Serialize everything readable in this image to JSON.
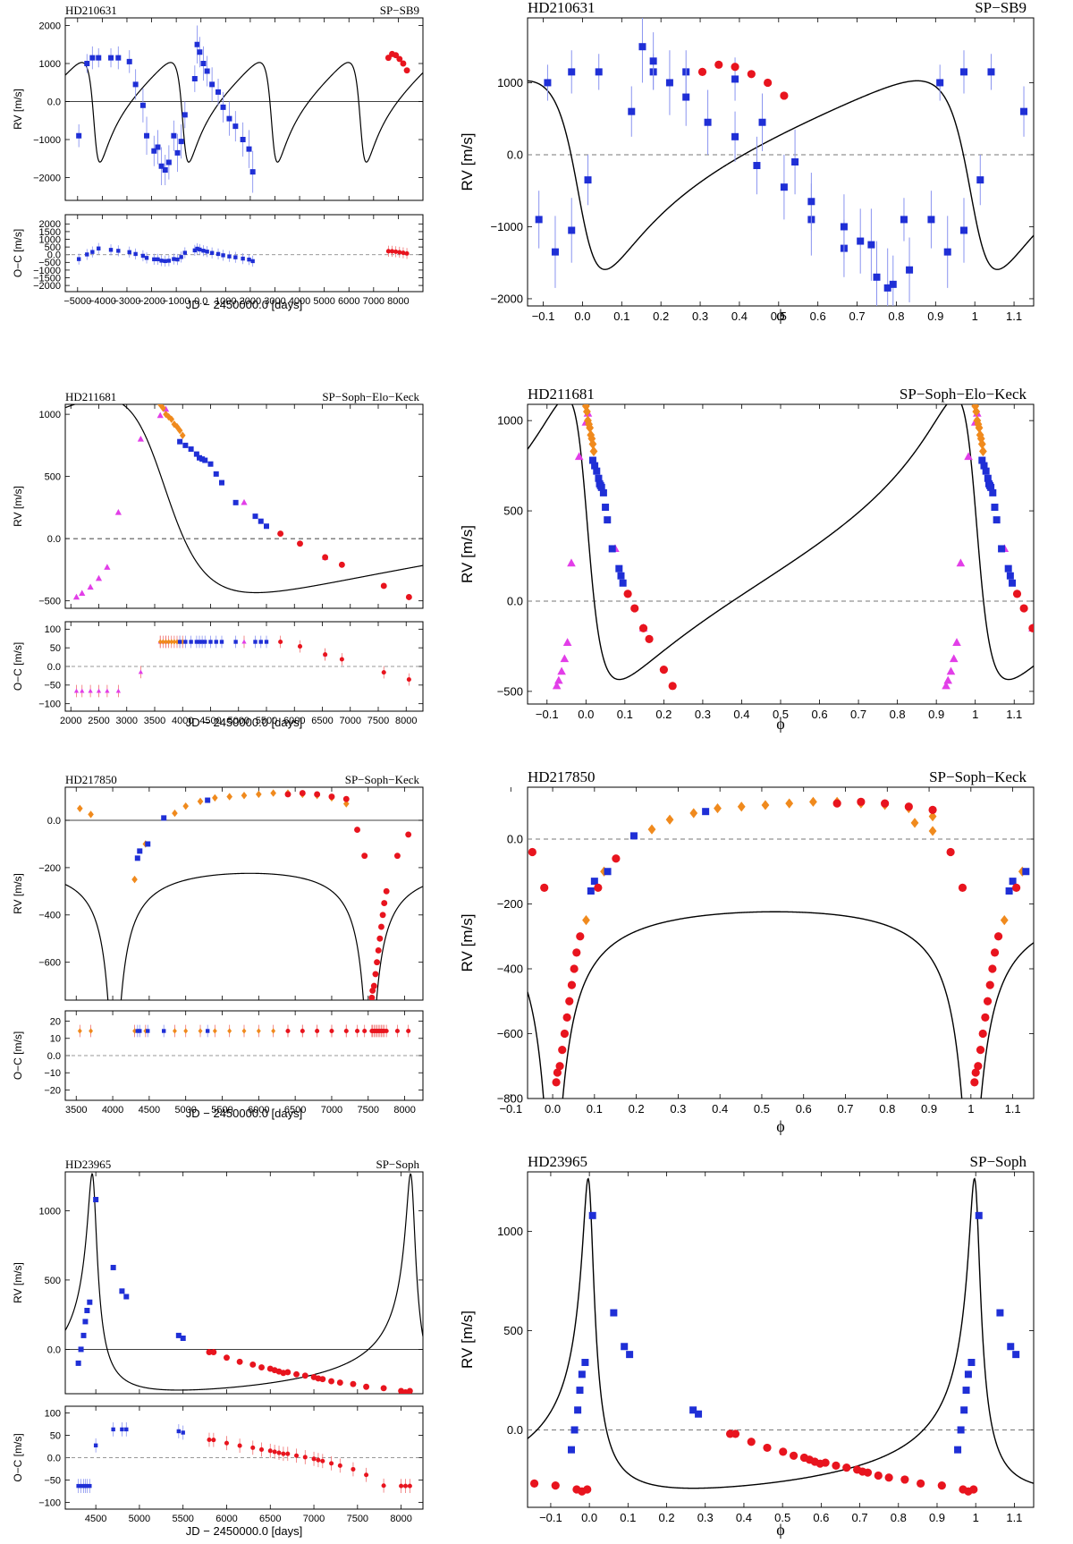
{
  "figure": {
    "colors": {
      "blue": "#1f2fd6",
      "red": "#e8141e",
      "orange": "#f08a1d",
      "magenta": "#e23ee8",
      "curve": "#000000",
      "errorbar_blue": "#8a94f0",
      "errorbar_red": "#f07070"
    }
  },
  "chart_data": [
    {
      "id": "hd210631",
      "type": "line",
      "star": "HD210631",
      "instruments": "SP−SB9",
      "xlabel": "JD − 2450000.0 [days]",
      "ylabel": "RV [m/s]",
      "oc_label": "O−C [m/s]",
      "phase_label": "ϕ",
      "time": {
        "xlim": [
          -5500,
          9000
        ],
        "xticks": [
          -5000,
          -4000,
          -3000,
          -2000,
          -1000,
          0,
          1000,
          2000,
          3000,
          4000,
          5000,
          6000,
          7000,
          8000
        ],
        "ylim": [
          -2600,
          2200
        ],
        "yticks": [
          -2000,
          -1000,
          0,
          1000,
          2000
        ],
        "oc_ylim": [
          -2400,
          2600
        ],
        "oc_yticks": [
          -2000,
          -1500,
          -1000,
          -500,
          0,
          500,
          1000,
          1500,
          2000
        ],
        "zero_style": "solid",
        "period": 3600,
        "tp": -4300,
        "e": 0.52,
        "w": 2.0,
        "K": 1310,
        "v0": 0,
        "curve_range": [
          -5500,
          9000
        ],
        "series": [
          {
            "name": "SP",
            "color": "blue",
            "marker": "square",
            "x": [
              -4950,
              -4620,
              -4400,
              -4150,
              -3650,
              -3350,
              -2900,
              -2650,
              -2350,
              -2200,
              -1900,
              -1750,
              -1600,
              -1450,
              -1300,
              -1100,
              -950,
              -800,
              -650,
              -250,
              -150,
              -50,
              100,
              250,
              450,
              700,
              900,
              1150,
              1400,
              1700,
              1950,
              2100
            ],
            "y": [
              -900,
              1000,
              1150,
              1150,
              1150,
              1150,
              1050,
              450,
              -100,
              -900,
              -1300,
              -1200,
              -1700,
              -1800,
              -1600,
              -900,
              -1350,
              -1050,
              -350,
              600,
              1500,
              1300,
              1000,
              800,
              450,
              250,
              -150,
              -450,
              -650,
              -1000,
              -1250,
              -1850
            ],
            "err": [
              300,
              250,
              300,
              250,
              250,
              300,
              300,
              400,
              450,
              500,
              400,
              450,
              500,
              400,
              450,
              400,
              500,
              450,
              350,
              350,
              500,
              400,
              450,
              400,
              450,
              350,
              400,
              450,
              400,
              450,
              500,
              550
            ]
          },
          {
            "name": "SB9",
            "color": "red",
            "marker": "circle",
            "x": [
              7600,
              7750,
              7900,
              8050,
              8200,
              8350
            ],
            "y": [
              1150,
              1250,
              1220,
              1120,
              1000,
              820
            ],
            "err": [
              30,
              30,
              30,
              30,
              30,
              30
            ]
          }
        ]
      },
      "phase": {
        "xlim": [
          -0.14,
          1.15
        ],
        "xticks": [
          -0.1,
          0.0,
          0.1,
          0.2,
          0.3,
          0.4,
          0.5,
          0.6,
          0.7,
          0.8,
          0.9,
          1.0,
          1.1
        ],
        "ylim": [
          -2100,
          1900
        ],
        "yticks": [
          -2000,
          -1000,
          0,
          1000
        ],
        "zero_style": "dashed"
      }
    },
    {
      "id": "hd211681",
      "type": "line",
      "star": "HD211681",
      "instruments": "SP−Soph−Elo−Keck",
      "xlabel": "JD − 2450000.0 [days]",
      "ylabel": "RV [m/s]",
      "oc_label": "O−C [m/s]",
      "phase_label": "ϕ",
      "time": {
        "xlim": [
          1900,
          8300
        ],
        "xticks": [
          2000,
          2500,
          3000,
          3500,
          4000,
          4500,
          5000,
          5500,
          6000,
          6500,
          7000,
          7500,
          8000
        ],
        "ylim": [
          -560,
          1080
        ],
        "yticks": [
          -500,
          0,
          500,
          1000
        ],
        "oc_ylim": [
          -120,
          120
        ],
        "oc_yticks": [
          -100,
          -50,
          0,
          50,
          100
        ],
        "zero_style": "dashed",
        "period": 20000,
        "tp": 3600,
        "e": 0.62,
        "w": 1.35,
        "K": 780,
        "v0": 240,
        "curve_range": [
          1900,
          8300
        ],
        "series": [
          {
            "name": "Elodie",
            "color": "magenta",
            "marker": "triangle",
            "x": [
              2100,
              2200,
              2350,
              2500,
              2650,
              2850,
              3250,
              3600,
              3700,
              5100,
              6550
            ],
            "y": [
              -470,
              -440,
              -390,
              -320,
              -230,
              210,
              800,
              990,
              1040,
              290,
              -150
            ]
          },
          {
            "name": "Sophie",
            "color": "orange",
            "marker": "diamond",
            "x": [
              3600,
              3650,
              3700,
              3750,
              3800,
              3850,
              3900,
              3950,
              4000
            ],
            "y": [
              1080,
              1050,
              1000,
              980,
              960,
              920,
              900,
              870,
              830
            ]
          },
          {
            "name": "Keck",
            "color": "blue",
            "marker": "square",
            "x": [
              3950,
              4050,
              4150,
              4250,
              4300,
              4350,
              4400,
              4500,
              4600,
              4700,
              4950,
              5300,
              5400,
              5500
            ],
            "y": [
              780,
              750,
              720,
              680,
              650,
              640,
              630,
              600,
              520,
              450,
              290,
              180,
              140,
              100
            ]
          },
          {
            "name": "SP",
            "color": "red",
            "marker": "circle",
            "x": [
              5750,
              6100,
              6550,
              6850,
              7600,
              8050
            ],
            "y": [
              40,
              -40,
              -150,
              -210,
              -380,
              -470
            ]
          }
        ]
      },
      "phase": {
        "xlim": [
          -0.15,
          1.15
        ],
        "xticks": [
          -0.1,
          0.0,
          0.1,
          0.2,
          0.3,
          0.4,
          0.5,
          0.6,
          0.7,
          0.8,
          0.9,
          1.0,
          1.1
        ],
        "ylim": [
          -570,
          1090
        ],
        "yticks": [
          -500,
          0,
          500,
          1000
        ],
        "zero_style": "dashed"
      }
    },
    {
      "id": "hd217850",
      "type": "line",
      "star": "HD217850",
      "instruments": "SP−Soph−Keck",
      "xlabel": "JD − 2450000.0 [days]",
      "ylabel": "RV [m/s]",
      "oc_label": "O−C [m/s]",
      "phase_label": "ϕ",
      "time": {
        "xlim": [
          3350,
          8250
        ],
        "xticks": [
          3500,
          4000,
          4500,
          5000,
          5500,
          6000,
          6500,
          7000,
          7500,
          8000
        ],
        "ylim": [
          -760,
          140
        ],
        "yticks": [
          -600,
          -400,
          -200,
          0
        ],
        "oc_ylim": [
          -26,
          26
        ],
        "oc_yticks": [
          -20,
          -10,
          0,
          10,
          20
        ],
        "zero_style": "solid",
        "period": 3500,
        "tp": 4020,
        "e": 0.76,
        "w": 3.1,
        "K": 440,
        "v0": -330,
        "curve_range": [
          3350,
          8250
        ],
        "series": [
          {
            "name": "Sophie",
            "color": "orange",
            "marker": "diamond",
            "x": [
              3550,
              3700,
              4300,
              4450,
              4850,
              5000,
              5200,
              5400,
              5600,
              5800,
              6000,
              6200,
              6400,
              6600,
              6800,
              7000,
              7200
            ],
            "y": [
              50,
              25,
              -250,
              -100,
              30,
              60,
              80,
              95,
              100,
              105,
              110,
              115,
              115,
              110,
              105,
              95,
              70
            ]
          },
          {
            "name": "Keck",
            "color": "blue",
            "marker": "square",
            "x": [
              4340,
              4370,
              4480,
              4700,
              5300
            ],
            "y": [
              -160,
              -130,
              -100,
              10,
              85
            ]
          },
          {
            "name": "SP",
            "color": "red",
            "marker": "circle",
            "x": [
              6400,
              6600,
              6800,
              7000,
              7200,
              7350,
              7450,
              7550,
              7560,
              7580,
              7600,
              7620,
              7640,
              7660,
              7680,
              7700,
              7720,
              7750,
              7900,
              8050
            ],
            "y": [
              110,
              115,
              110,
              100,
              90,
              -40,
              -150,
              -750,
              -720,
              -700,
              -650,
              -600,
              -550,
              -500,
              -450,
              -400,
              -350,
              -300,
              -150,
              -60
            ]
          }
        ]
      },
      "phase": {
        "xlim": [
          -0.06,
          1.15
        ],
        "xticks": [
          -0.1,
          0.0,
          0.1,
          0.2,
          0.3,
          0.4,
          0.5,
          0.6,
          0.7,
          0.8,
          0.9,
          1.0,
          1.1
        ],
        "ylim": [
          -800,
          160
        ],
        "yticks": [
          -800,
          -600,
          -400,
          -200,
          0
        ],
        "zero_style": "dashed"
      }
    },
    {
      "id": "hd23965",
      "type": "line",
      "star": "HD23965",
      "instruments": "SP−Soph",
      "xlabel": "JD − 2450000.0 [days]",
      "ylabel": "RV [m/s]",
      "oc_label": "O−C [m/s]",
      "phase_label": "ϕ",
      "time": {
        "xlim": [
          4150,
          8250
        ],
        "xticks": [
          4500,
          5000,
          5500,
          6000,
          6500,
          7000,
          7500,
          8000
        ],
        "ylim": [
          -320,
          1280
        ],
        "yticks": [
          0,
          500,
          1000
        ],
        "oc_ylim": [
          -115,
          115
        ],
        "oc_yticks": [
          -100,
          -50,
          0,
          50,
          100
        ],
        "zero_style": "solid",
        "period": 3650,
        "tp": 4470,
        "e": 0.8,
        "w": 0.3,
        "K": 780,
        "v0": -110,
        "curve_range": [
          4150,
          8250
        ],
        "series": [
          {
            "name": "Soph",
            "color": "blue",
            "marker": "square",
            "x": [
              4300,
              4330,
              4360,
              4380,
              4400,
              4430,
              4500,
              4700,
              4800,
              4850,
              5450,
              5500
            ],
            "y": [
              -100,
              0,
              100,
              200,
              280,
              340,
              1080,
              590,
              420,
              380,
              100,
              80
            ]
          },
          {
            "name": "SP",
            "color": "red",
            "marker": "circle",
            "x": [
              5800,
              5850,
              6000,
              6150,
              6300,
              6400,
              6500,
              6550,
              6600,
              6650,
              6700,
              6800,
              6900,
              7000,
              7050,
              7100,
              7200,
              7300,
              7450,
              7600,
              7800,
              8000,
              8050,
              8100
            ],
            "y": [
              -20,
              -20,
              -60,
              -90,
              -110,
              -130,
              -140,
              -150,
              -160,
              -170,
              -165,
              -180,
              -190,
              -200,
              -210,
              -215,
              -230,
              -240,
              -250,
              -270,
              -280,
              -300,
              -310,
              -300
            ]
          }
        ]
      },
      "phase": {
        "xlim": [
          -0.16,
          1.15
        ],
        "xticks": [
          -0.1,
          0.0,
          0.1,
          0.2,
          0.3,
          0.4,
          0.5,
          0.6,
          0.7,
          0.8,
          0.9,
          1.0,
          1.1
        ],
        "ylim": [
          -390,
          1300
        ],
        "yticks": [
          0,
          500,
          1000
        ],
        "zero_style": "dashed"
      }
    }
  ]
}
